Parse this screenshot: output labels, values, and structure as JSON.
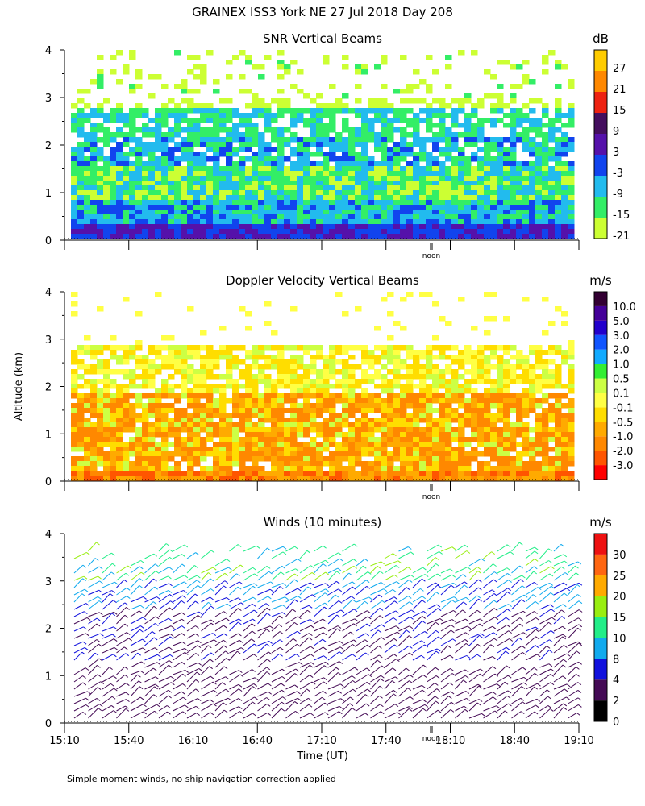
{
  "title": "GRAINEX ISS3 York NE  27 Jul 2018 Day 208",
  "footer_note": "Simple moment winds, no ship navigation correction applied",
  "chart_data": [
    {
      "type": "heatmap",
      "title": "SNR Vertical Beams",
      "ylabel": "",
      "ylim": [
        0,
        4
      ],
      "yticks": [
        "0",
        "1",
        "2",
        "3",
        "4"
      ],
      "noon_label": "noon",
      "colorbar": {
        "unit": "dB",
        "colors": [
          "#ccff33",
          "#33ee66",
          "#22bbee",
          "#1144ee",
          "#5511aa",
          "#440e5e",
          "#ee2211",
          "#ff8800",
          "#ffcc00"
        ],
        "labels": [
          "-21",
          "-15",
          "-9",
          "-3",
          "3",
          "9",
          "15",
          "21",
          "27"
        ]
      }
    },
    {
      "type": "heatmap",
      "title": "Doppler Velocity Vertical Beams",
      "ylabel": "Altitude (km)",
      "ylim": [
        0,
        4
      ],
      "yticks": [
        "0",
        "1",
        "2",
        "3",
        "4"
      ],
      "noon_label": "noon",
      "colorbar": {
        "unit": "m/s",
        "colors": [
          "#ff0000",
          "#ff5500",
          "#ff8800",
          "#ffaa00",
          "#ffdd00",
          "#ffff44",
          "#ccff44",
          "#33ee33",
          "#11aaff",
          "#1155ff",
          "#2200cc",
          "#440099",
          "#330033"
        ],
        "labels": [
          "-3.0",
          "-2.0",
          "-1.0",
          "-0.5",
          "-0.1",
          "0.1",
          "0.5",
          "1.0",
          "2.0",
          "3.0",
          "5.0",
          "10.0"
        ]
      }
    },
    {
      "type": "scatter",
      "title": "Winds (10 minutes)",
      "xlabel": "Time (UT)",
      "ylabel": "",
      "ylim": [
        0,
        4
      ],
      "yticks": [
        "0",
        "1",
        "2",
        "3",
        "4"
      ],
      "xticks": [
        "15:10",
        "15:40",
        "16:10",
        "16:40",
        "17:10",
        "17:40",
        "18:10",
        "18:40",
        "19:10"
      ],
      "noon_label": "noon",
      "colorbar": {
        "unit": "m/s",
        "colors": [
          "#000000",
          "#440a55",
          "#1111dd",
          "#11aaee",
          "#22ee88",
          "#99ee11",
          "#ffaa00",
          "#ff6611",
          "#ee1111"
        ],
        "labels": [
          "0",
          "2",
          "4",
          "8",
          "10",
          "15",
          "20",
          "25",
          "30"
        ]
      }
    }
  ]
}
